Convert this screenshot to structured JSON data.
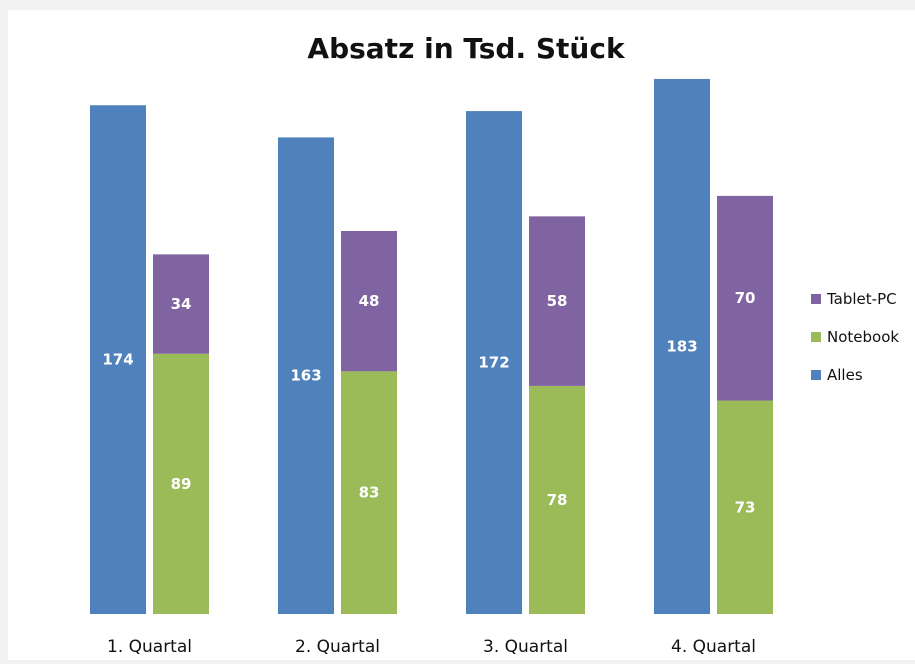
{
  "chart_data": {
    "type": "bar",
    "stacked_series": [
      "Notebook",
      "Tablet-PC"
    ],
    "title": "Absatz in Tsd. Stück",
    "xlabel": "",
    "ylabel": "",
    "categories": [
      "1. Quartal",
      "2. Quartal",
      "3. Quartal",
      "4. Quartal"
    ],
    "series": [
      {
        "name": "Alles",
        "values": [
          174,
          163,
          172,
          183
        ],
        "color": "#4f81bd"
      },
      {
        "name": "Notebook",
        "values": [
          89,
          83,
          78,
          73
        ],
        "color": "#9bbb59"
      },
      {
        "name": "Tablet-PC",
        "values": [
          34,
          48,
          58,
          70
        ],
        "color": "#8064a2"
      }
    ],
    "legend_order": [
      "Tablet-PC",
      "Notebook",
      "Alles"
    ],
    "legend_position": "right",
    "ylim": [
      0,
      184
    ],
    "grid": false,
    "axis_visible": false
  }
}
